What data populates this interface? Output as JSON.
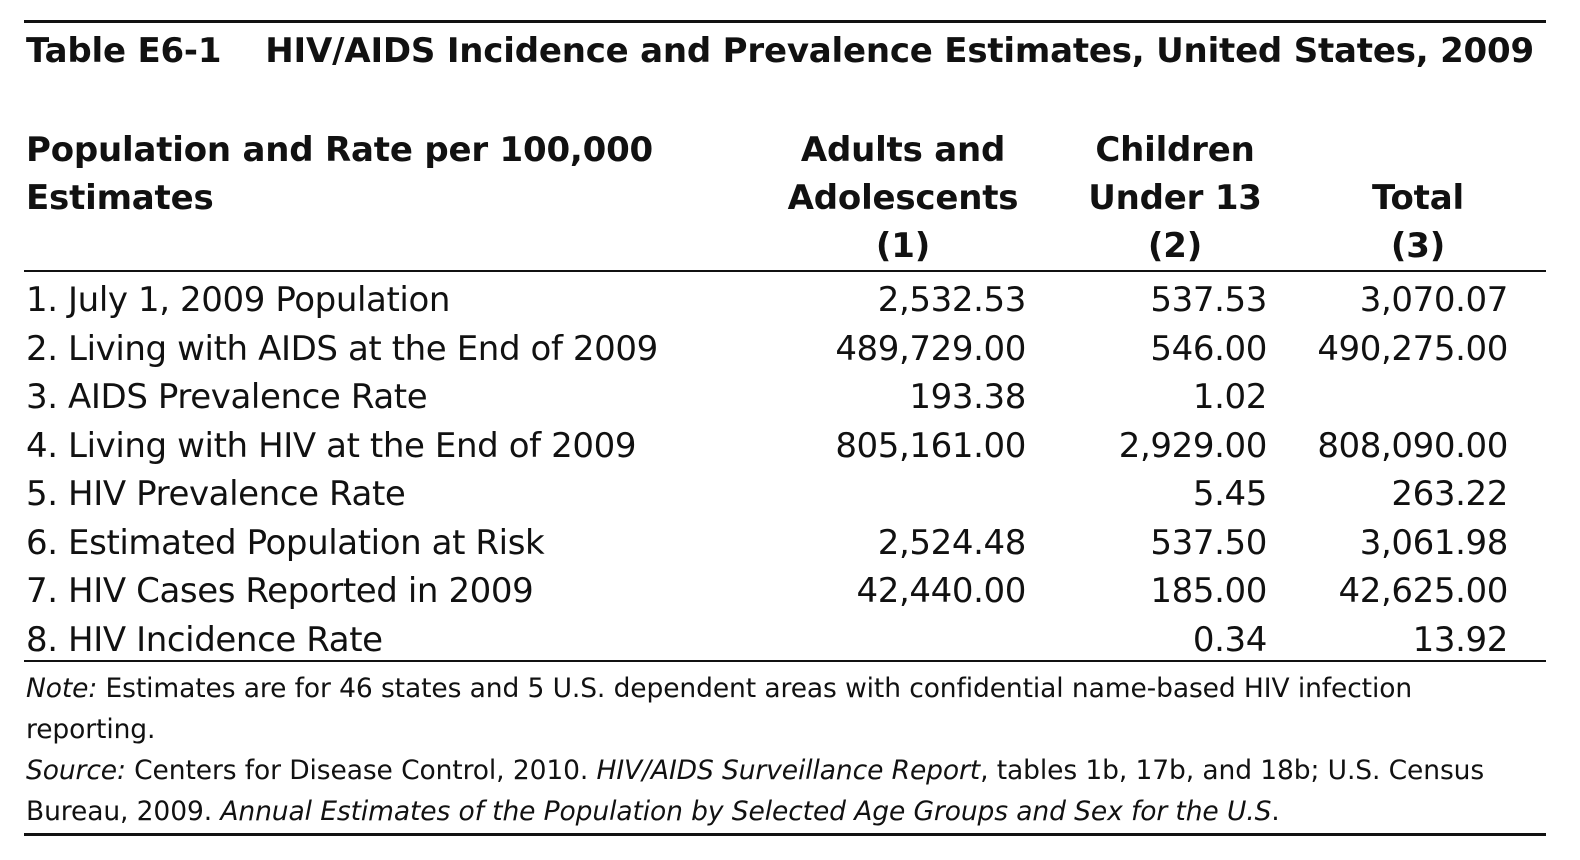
{
  "table": {
    "number": "Table E6-1",
    "title": "HIV/AIDS Incidence and Prevalence Estimates, United States, 2009",
    "columns": [
      {
        "lines": [
          "Population and Rate per 100,000",
          "Estimates"
        ]
      },
      {
        "lines": [
          "Adults and",
          "Adolescents",
          "(1)"
        ]
      },
      {
        "lines": [
          "Children",
          "Under 13",
          "(2)"
        ]
      },
      {
        "lines": [
          "Total",
          "(3)"
        ]
      }
    ],
    "rows": [
      {
        "label": "1. July 1, 2009 Population",
        "adults": "2,532.53",
        "children": "537.53",
        "total": "3,070.07"
      },
      {
        "label": "2. Living with AIDS at the End of 2009",
        "adults": "489,729.00",
        "children": "546.00",
        "total": "490,275.00"
      },
      {
        "label": "3. AIDS Prevalence Rate",
        "adults": "193.38",
        "children": "1.02",
        "total": ""
      },
      {
        "label": "4. Living with HIV at the End of 2009",
        "adults": "805,161.00",
        "children": "2,929.00",
        "total": "808,090.00"
      },
      {
        "label": "5. HIV Prevalence Rate",
        "adults": "",
        "children": "5.45",
        "total": "263.22"
      },
      {
        "label": "6. Estimated Population at Risk",
        "adults": "2,524.48",
        "children": "537.50",
        "total": "3,061.98"
      },
      {
        "label": "7. HIV Cases Reported in 2009",
        "adults": "42,440.00",
        "children": "185.00",
        "total": "42,625.00"
      },
      {
        "label": "8. HIV Incidence Rate",
        "adults": "",
        "children": "0.34",
        "total": "13.92"
      }
    ]
  },
  "note": {
    "label": "Note:",
    "text": " Estimates are for 46 states and 5 U.S. dependent areas with confidential name-based HIV infection reporting."
  },
  "source": {
    "label": "Source:",
    "text1": " Centers for Disease Control, 2010. ",
    "title1": "HIV/AIDS Surveillance Report",
    "text2": ", tables 1b, 17b, and 18b; U.S. Census Bureau, 2009. ",
    "title2": "Annual Estimates of the Population by Selected Age Groups and Sex for the U.S",
    "text3": "."
  }
}
